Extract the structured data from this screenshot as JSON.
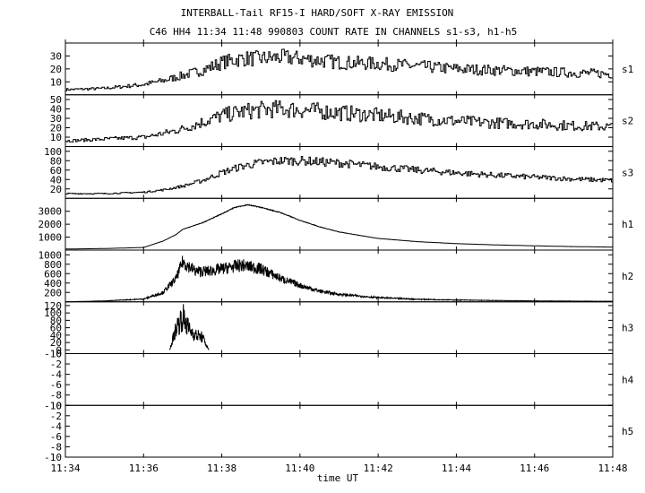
{
  "chart_data": {
    "type": "line",
    "title_line1": "INTERBALL-Tail RF15-I HARD/SOFT X-RAY EMISSION",
    "title_line2": "C46 HH4 11:34 11:48 990803  COUNT RATE IN CHANNELS s1-s3, h1-h5",
    "xlabel": "time UT",
    "x_range": [
      "11:34",
      "11:48"
    ],
    "x_ticks": [
      "11:34",
      "11:36",
      "11:38",
      "11:40",
      "11:42",
      "11:44",
      "11:46",
      "11:48"
    ],
    "series": [
      {
        "name": "s1",
        "ylim": [
          0,
          40
        ],
        "y_ticks": [
          10,
          20,
          30
        ],
        "x": [
          "11:34",
          "11:35",
          "11:36",
          "11:36:30",
          "11:37",
          "11:37:30",
          "11:38",
          "11:38:30",
          "11:39",
          "11:39:30",
          "11:40",
          "11:41",
          "11:42",
          "11:43",
          "11:44",
          "11:45",
          "11:46",
          "11:47",
          "11:48"
        ],
        "values": [
          4,
          5,
          8,
          11,
          15,
          19,
          25,
          28,
          28,
          29,
          28,
          25,
          24,
          22,
          20,
          19,
          18,
          17,
          16
        ]
      },
      {
        "name": "s2",
        "ylim": [
          0,
          55
        ],
        "y_ticks": [
          10,
          20,
          30,
          40,
          50
        ],
        "x": [
          "11:34",
          "11:35",
          "11:36",
          "11:36:30",
          "11:37",
          "11:37:30",
          "11:38",
          "11:38:30",
          "11:39",
          "11:39:30",
          "11:40",
          "11:41",
          "11:42",
          "11:43",
          "11:44",
          "11:45",
          "11:46",
          "11:47",
          "11:48"
        ],
        "values": [
          6,
          8,
          10,
          14,
          19,
          26,
          33,
          37,
          39,
          40,
          39,
          36,
          33,
          30,
          27,
          25,
          24,
          22,
          21
        ]
      },
      {
        "name": "s3",
        "ylim": [
          0,
          110
        ],
        "y_ticks": [
          20,
          40,
          60,
          80,
          100
        ],
        "x": [
          "11:34",
          "11:35",
          "11:36",
          "11:36:30",
          "11:37",
          "11:37:30",
          "11:38",
          "11:38:30",
          "11:39",
          "11:39:30",
          "11:40",
          "11:41",
          "11:42",
          "11:43",
          "11:44",
          "11:45",
          "11:46",
          "11:47",
          "11:48"
        ],
        "values": [
          10,
          10,
          13,
          18,
          26,
          38,
          55,
          68,
          76,
          80,
          80,
          75,
          67,
          60,
          54,
          49,
          45,
          41,
          38
        ]
      },
      {
        "name": "h1",
        "ylim": [
          0,
          4000
        ],
        "y_ticks": [
          1000,
          2000,
          3000
        ],
        "x": [
          "11:34",
          "11:35",
          "11:36",
          "11:36:30",
          "11:36:50",
          "11:37",
          "11:37:30",
          "11:38",
          "11:38:20",
          "11:38:40",
          "11:39",
          "11:39:30",
          "11:40",
          "11:40:30",
          "11:41",
          "11:42",
          "11:43",
          "11:44",
          "11:45",
          "11:46",
          "11:47",
          "11:48"
        ],
        "values": [
          80,
          120,
          200,
          700,
          1200,
          1600,
          2100,
          2800,
          3300,
          3500,
          3300,
          2900,
          2300,
          1800,
          1400,
          900,
          650,
          500,
          400,
          330,
          270,
          230
        ]
      },
      {
        "name": "h2",
        "ylim": [
          0,
          1100
        ],
        "y_ticks": [
          200,
          400,
          600,
          800,
          1000
        ],
        "x": [
          "11:34",
          "11:35",
          "11:36",
          "11:36:30",
          "11:36:50",
          "11:37",
          "11:37:20",
          "11:37:40",
          "11:38",
          "11:38:30",
          "11:39",
          "11:39:30",
          "11:40",
          "11:40:30",
          "11:41",
          "11:42",
          "11:43",
          "11:44",
          "11:45",
          "11:46",
          "11:47",
          "11:48"
        ],
        "values": [
          0,
          20,
          60,
          200,
          500,
          850,
          650,
          650,
          700,
          780,
          700,
          500,
          350,
          230,
          160,
          90,
          55,
          40,
          28,
          20,
          15,
          12
        ]
      },
      {
        "name": "h3",
        "ylim": [
          -10,
          130
        ],
        "y_ticks": [
          -10,
          0,
          20,
          40,
          60,
          80,
          100,
          120
        ],
        "x": [
          "11:36:40",
          "11:36:50",
          "11:37",
          "11:37:10",
          "11:37:20",
          "11:37:30",
          "11:37:40"
        ],
        "values": [
          0,
          60,
          90,
          55,
          40,
          35,
          0
        ]
      },
      {
        "name": "h4",
        "ylim": [
          -10,
          0
        ],
        "y_ticks": [
          -10,
          -8,
          -6,
          -4,
          -2,
          0
        ],
        "x": [],
        "values": []
      },
      {
        "name": "h5",
        "ylim": [
          -10,
          0
        ],
        "y_ticks": [
          -10,
          -8,
          -6,
          -4,
          -2,
          0
        ],
        "x": [],
        "values": []
      }
    ]
  }
}
